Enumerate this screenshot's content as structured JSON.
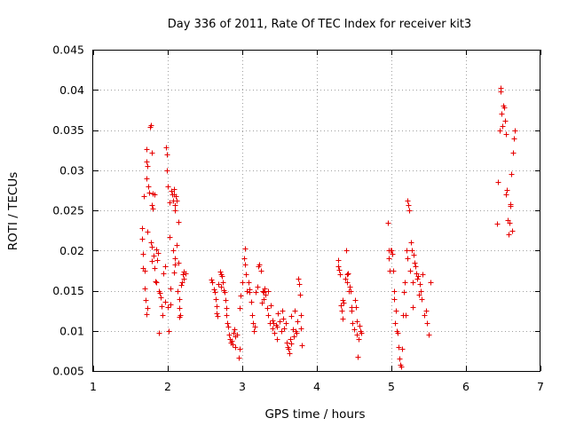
{
  "chart_data": {
    "type": "scatter",
    "title": "Day 336 of 2011, Rate Of TEC Index for receiver kit3",
    "xlabel": "GPS time / hours",
    "ylabel": "ROTI / TECUs",
    "xlim": [
      1,
      7
    ],
    "ylim": [
      0.005,
      0.045
    ],
    "grid": true,
    "marker": "+",
    "marker_color": "#e60000",
    "x_ticks": [
      1,
      2,
      3,
      4,
      5,
      6,
      7
    ],
    "x_tick_labels": [
      "1",
      "2",
      "3",
      "4",
      "5",
      "6",
      "7"
    ],
    "y_ticks": [
      0.005,
      0.01,
      0.015,
      0.02,
      0.025,
      0.03,
      0.035,
      0.04,
      0.045
    ],
    "y_tick_labels": [
      "0.005",
      "0.01",
      "0.015",
      "0.02",
      "0.025",
      "0.03",
      "0.035",
      "0.04",
      "0.045"
    ],
    "series": [
      {
        "name": "ROTI",
        "points": [
          [
            1.65,
            0.0228
          ],
          [
            1.66,
            0.0215
          ],
          [
            1.67,
            0.0196
          ],
          [
            1.67,
            0.0178
          ],
          [
            1.68,
            0.0268
          ],
          [
            1.69,
            0.0175
          ],
          [
            1.69,
            0.0153
          ],
          [
            1.7,
            0.0138
          ],
          [
            1.71,
            0.0326
          ],
          [
            1.72,
            0.0311
          ],
          [
            1.72,
            0.029
          ],
          [
            1.72,
            0.0121
          ],
          [
            1.73,
            0.0305
          ],
          [
            1.73,
            0.0223
          ],
          [
            1.73,
            0.0128
          ],
          [
            1.74,
            0.028
          ],
          [
            1.75,
            0.0272
          ],
          [
            1.76,
            0.0354
          ],
          [
            1.77,
            0.0356
          ],
          [
            1.77,
            0.021
          ],
          [
            1.78,
            0.0205
          ],
          [
            1.78,
            0.0187
          ],
          [
            1.79,
            0.0322
          ],
          [
            1.79,
            0.0257
          ],
          [
            1.8,
            0.0271
          ],
          [
            1.8,
            0.0252
          ],
          [
            1.81,
            0.0194
          ],
          [
            1.82,
            0.027
          ],
          [
            1.82,
            0.0178
          ],
          [
            1.83,
            0.0162
          ],
          [
            1.84,
            0.0201
          ],
          [
            1.85,
            0.016
          ],
          [
            1.86,
            0.0188
          ],
          [
            1.87,
            0.0197
          ],
          [
            1.88,
            0.015
          ],
          [
            1.88,
            0.0097
          ],
          [
            1.89,
            0.0147
          ],
          [
            1.9,
            0.0142
          ],
          [
            1.92,
            0.0131
          ],
          [
            1.93,
            0.012
          ],
          [
            1.94,
            0.0171
          ],
          [
            1.96,
            0.018
          ],
          [
            1.97,
            0.0136
          ],
          [
            1.98,
            0.0329
          ],
          [
            1.99,
            0.032
          ],
          [
            1.99,
            0.03
          ],
          [
            2.0,
            0.028
          ],
          [
            2.0,
            0.013
          ],
          [
            2.01,
            0.01
          ],
          [
            2.02,
            0.026
          ],
          [
            2.02,
            0.0217
          ],
          [
            2.03,
            0.0133
          ],
          [
            2.04,
            0.0153
          ],
          [
            2.05,
            0.0274
          ],
          [
            2.06,
            0.027
          ],
          [
            2.07,
            0.0262
          ],
          [
            2.07,
            0.02
          ],
          [
            2.08,
            0.0276
          ],
          [
            2.08,
            0.027
          ],
          [
            2.08,
            0.0173
          ],
          [
            2.09,
            0.0257
          ],
          [
            2.09,
            0.019
          ],
          [
            2.1,
            0.025
          ],
          [
            2.1,
            0.0183
          ],
          [
            2.11,
            0.0268
          ],
          [
            2.12,
            0.0262
          ],
          [
            2.12,
            0.0207
          ],
          [
            2.13,
            0.015
          ],
          [
            2.14,
            0.0236
          ],
          [
            2.14,
            0.0185
          ],
          [
            2.15,
            0.014
          ],
          [
            2.15,
            0.0117
          ],
          [
            2.16,
            0.0128
          ],
          [
            2.17,
            0.012
          ],
          [
            2.18,
            0.0157
          ],
          [
            2.19,
            0.016
          ],
          [
            2.2,
            0.017
          ],
          [
            2.21,
            0.0165
          ],
          [
            2.22,
            0.0174
          ],
          [
            2.24,
            0.0172
          ],
          [
            2.58,
            0.0164
          ],
          [
            2.6,
            0.016
          ],
          [
            2.62,
            0.0152
          ],
          [
            2.63,
            0.0148
          ],
          [
            2.64,
            0.014
          ],
          [
            2.65,
            0.0131
          ],
          [
            2.66,
            0.0122
          ],
          [
            2.67,
            0.0118
          ],
          [
            2.68,
            0.0158
          ],
          [
            2.7,
            0.0174
          ],
          [
            2.71,
            0.017
          ],
          [
            2.72,
            0.0155
          ],
          [
            2.73,
            0.0168
          ],
          [
            2.74,
            0.016
          ],
          [
            2.75,
            0.0151
          ],
          [
            2.76,
            0.0148
          ],
          [
            2.77,
            0.0138
          ],
          [
            2.78,
            0.0128
          ],
          [
            2.79,
            0.012
          ],
          [
            2.8,
            0.011
          ],
          [
            2.81,
            0.0105
          ],
          [
            2.82,
            0.0095
          ],
          [
            2.83,
            0.009
          ],
          [
            2.84,
            0.0085
          ],
          [
            2.86,
            0.0088
          ],
          [
            2.87,
            0.0083
          ],
          [
            2.88,
            0.0098
          ],
          [
            2.89,
            0.0102
          ],
          [
            2.9,
            0.0093
          ],
          [
            2.91,
            0.008
          ],
          [
            2.93,
            0.0095
          ],
          [
            2.95,
            0.0067
          ],
          [
            2.96,
            0.0078
          ],
          [
            2.97,
            0.0128
          ],
          [
            2.98,
            0.0144
          ],
          [
            3.0,
            0.016
          ],
          [
            3.02,
            0.019
          ],
          [
            3.03,
            0.0202
          ],
          [
            3.04,
            0.0183
          ],
          [
            3.05,
            0.017
          ],
          [
            3.06,
            0.015
          ],
          [
            3.08,
            0.016
          ],
          [
            3.09,
            0.0148
          ],
          [
            3.1,
            0.0152
          ],
          [
            3.12,
            0.0136
          ],
          [
            3.13,
            0.012
          ],
          [
            3.14,
            0.011
          ],
          [
            3.15,
            0.01
          ],
          [
            3.17,
            0.0105
          ],
          [
            3.18,
            0.0148
          ],
          [
            3.2,
            0.0155
          ],
          [
            3.22,
            0.018
          ],
          [
            3.23,
            0.0183
          ],
          [
            3.25,
            0.0175
          ],
          [
            3.26,
            0.0135
          ],
          [
            3.27,
            0.015
          ],
          [
            3.28,
            0.0148
          ],
          [
            3.29,
            0.014
          ],
          [
            3.3,
            0.0153
          ],
          [
            3.31,
            0.0145
          ],
          [
            3.33,
            0.0128
          ],
          [
            3.34,
            0.015
          ],
          [
            3.35,
            0.012
          ],
          [
            3.37,
            0.011
          ],
          [
            3.38,
            0.0132
          ],
          [
            3.4,
            0.0113
          ],
          [
            3.41,
            0.0103
          ],
          [
            3.42,
            0.011
          ],
          [
            3.43,
            0.0098
          ],
          [
            3.45,
            0.0108
          ],
          [
            3.46,
            0.009
          ],
          [
            3.47,
            0.0105
          ],
          [
            3.48,
            0.0122
          ],
          [
            3.5,
            0.0112
          ],
          [
            3.52,
            0.01
          ],
          [
            3.53,
            0.0125
          ],
          [
            3.55,
            0.0115
          ],
          [
            3.56,
            0.0103
          ],
          [
            3.58,
            0.011
          ],
          [
            3.6,
            0.0085
          ],
          [
            3.61,
            0.008
          ],
          [
            3.62,
            0.0078
          ],
          [
            3.63,
            0.0072
          ],
          [
            3.64,
            0.009
          ],
          [
            3.65,
            0.0084
          ],
          [
            3.66,
            0.0118
          ],
          [
            3.68,
            0.0102
          ],
          [
            3.69,
            0.0093
          ],
          [
            3.7,
            0.0125
          ],
          [
            3.71,
            0.01
          ],
          [
            3.73,
            0.0098
          ],
          [
            3.74,
            0.0112
          ],
          [
            3.75,
            0.0165
          ],
          [
            3.76,
            0.0158
          ],
          [
            3.77,
            0.0145
          ],
          [
            3.78,
            0.012
          ],
          [
            3.79,
            0.0103
          ],
          [
            3.8,
            0.0082
          ],
          [
            4.28,
            0.0188
          ],
          [
            4.29,
            0.018
          ],
          [
            4.3,
            0.0176
          ],
          [
            4.31,
            0.017
          ],
          [
            4.32,
            0.0132
          ],
          [
            4.33,
            0.0125
          ],
          [
            4.34,
            0.0115
          ],
          [
            4.35,
            0.0138
          ],
          [
            4.36,
            0.0135
          ],
          [
            4.38,
            0.0165
          ],
          [
            4.39,
            0.02
          ],
          [
            4.4,
            0.016
          ],
          [
            4.41,
            0.017
          ],
          [
            4.42,
            0.0172
          ],
          [
            4.43,
            0.015
          ],
          [
            4.44,
            0.0155
          ],
          [
            4.45,
            0.015
          ],
          [
            4.46,
            0.013
          ],
          [
            4.47,
            0.0125
          ],
          [
            4.48,
            0.011
          ],
          [
            4.5,
            0.0102
          ],
          [
            4.51,
            0.0138
          ],
          [
            4.52,
            0.013
          ],
          [
            4.53,
            0.0112
          ],
          [
            4.54,
            0.0095
          ],
          [
            4.55,
            0.0068
          ],
          [
            4.56,
            0.009
          ],
          [
            4.57,
            0.0106
          ],
          [
            4.58,
            0.01
          ],
          [
            4.6,
            0.0098
          ],
          [
            4.95,
            0.0235
          ],
          [
            4.96,
            0.02
          ],
          [
            4.97,
            0.019
          ],
          [
            4.98,
            0.0175
          ],
          [
            4.99,
            0.02
          ],
          [
            5.0,
            0.02
          ],
          [
            5.01,
            0.0196
          ],
          [
            5.02,
            0.0175
          ],
          [
            5.03,
            0.015
          ],
          [
            5.04,
            0.014
          ],
          [
            5.05,
            0.011
          ],
          [
            5.06,
            0.0125
          ],
          [
            5.07,
            0.01
          ],
          [
            5.08,
            0.0098
          ],
          [
            5.1,
            0.008
          ],
          [
            5.11,
            0.0065
          ],
          [
            5.12,
            0.0058
          ],
          [
            5.13,
            0.0055
          ],
          [
            5.14,
            0.0078
          ],
          [
            5.15,
            0.012
          ],
          [
            5.17,
            0.0148
          ],
          [
            5.18,
            0.016
          ],
          [
            5.19,
            0.012
          ],
          [
            5.2,
            0.02
          ],
          [
            5.21,
            0.019
          ],
          [
            5.22,
            0.0262
          ],
          [
            5.23,
            0.0257
          ],
          [
            5.24,
            0.025
          ],
          [
            5.25,
            0.0175
          ],
          [
            5.26,
            0.021
          ],
          [
            5.27,
            0.02
          ],
          [
            5.28,
            0.016
          ],
          [
            5.29,
            0.013
          ],
          [
            5.3,
            0.0195
          ],
          [
            5.31,
            0.0185
          ],
          [
            5.32,
            0.018
          ],
          [
            5.33,
            0.0172
          ],
          [
            5.34,
            0.0165
          ],
          [
            5.36,
            0.0168
          ],
          [
            5.37,
            0.0145
          ],
          [
            5.38,
            0.0158
          ],
          [
            5.39,
            0.015
          ],
          [
            5.4,
            0.014
          ],
          [
            5.42,
            0.017
          ],
          [
            5.44,
            0.012
          ],
          [
            5.46,
            0.0125
          ],
          [
            5.48,
            0.011
          ],
          [
            5.5,
            0.0095
          ],
          [
            5.52,
            0.016
          ],
          [
            6.42,
            0.0233
          ],
          [
            6.43,
            0.0285
          ],
          [
            6.45,
            0.035
          ],
          [
            6.46,
            0.0398
          ],
          [
            6.47,
            0.0402
          ],
          [
            6.48,
            0.037
          ],
          [
            6.49,
            0.0355
          ],
          [
            6.5,
            0.038
          ],
          [
            6.51,
            0.0378
          ],
          [
            6.52,
            0.0362
          ],
          [
            6.53,
            0.0345
          ],
          [
            6.54,
            0.027
          ],
          [
            6.55,
            0.0275
          ],
          [
            6.56,
            0.0238
          ],
          [
            6.57,
            0.022
          ],
          [
            6.58,
            0.0235
          ],
          [
            6.59,
            0.0255
          ],
          [
            6.6,
            0.0258
          ],
          [
            6.61,
            0.0295
          ],
          [
            6.62,
            0.0225
          ],
          [
            6.63,
            0.0322
          ],
          [
            6.64,
            0.034
          ],
          [
            6.65,
            0.035
          ]
        ]
      }
    ]
  }
}
